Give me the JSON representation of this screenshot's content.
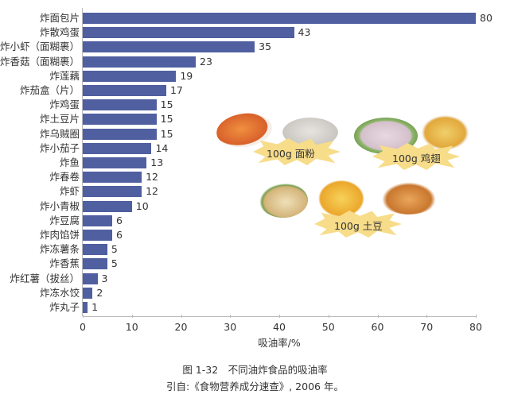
{
  "chart_data": {
    "type": "bar",
    "orientation": "horizontal",
    "title": "图 1-32　不同油炸食品的吸油率",
    "subtitle": "引自:《食物营养成分速查》, 2006 年。",
    "xlabel": "吸油率/%",
    "ylabel": "",
    "xlim": [
      0,
      80
    ],
    "xticks": [
      0,
      10,
      20,
      30,
      40,
      50,
      60,
      70,
      80
    ],
    "grid": false,
    "legend": null,
    "bar_color": "#4f5fa0",
    "categories": [
      "炸面包片",
      "炸散鸡蛋",
      "炸小虾（面糊裹）",
      "炸香菇（面糊裹）",
      "炸莲藕",
      "炸茄盒（片）",
      "炸鸡蛋",
      "炸土豆片",
      "炸乌贼圈",
      "炸小茄子",
      "炸鱼",
      "炸春卷",
      "炸虾",
      "炸小青椒",
      "炸豆腐",
      "炸肉馅饼",
      "炸冻薯条",
      "炸香蕉",
      "炸红薯（拔丝）",
      "炸冻水饺",
      "炸丸子"
    ],
    "values": [
      80,
      43,
      35,
      23,
      19,
      17,
      15,
      15,
      15,
      14,
      13,
      12,
      12,
      10,
      6,
      6,
      5,
      5,
      3,
      2,
      1
    ],
    "annotations": [
      "100g 面粉",
      "100g 鸡翅",
      "100g 土豆"
    ]
  },
  "caption": {
    "figure": "图 1-32　不同油炸食品的吸油率",
    "source": "引自:《食物营养成分速查》, 2006 年。"
  },
  "xaxis": {
    "label": "吸油率/%",
    "ticks": [
      "0",
      "10",
      "20",
      "30",
      "40",
      "50",
      "60",
      "70",
      "80"
    ]
  },
  "images": {
    "flour": "100g 面粉",
    "chicken": "100g 鸡翅",
    "potato": "100g 土豆"
  }
}
